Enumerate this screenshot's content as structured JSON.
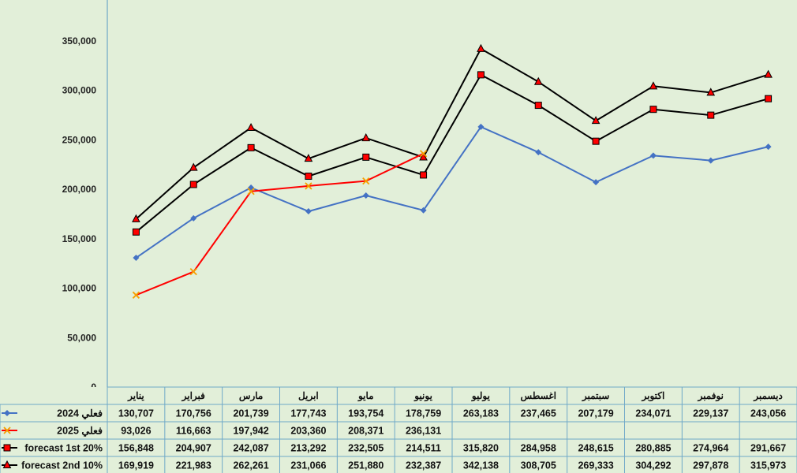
{
  "chart_data": {
    "type": "line",
    "categories": [
      "يناير",
      "فبراير",
      "مارس",
      "ابريل",
      "مايو",
      "يونيو",
      "يوليو",
      "اغسطس",
      "سبتمبر",
      "اكتوبر",
      "نوفمبر",
      "ديسمبر"
    ],
    "ylim": [
      0,
      350000
    ],
    "yticks": [
      0,
      50000,
      100000,
      150000,
      200000,
      250000,
      300000,
      350000
    ],
    "ytick_labels": [
      "0",
      "50,000",
      "100,000",
      "150,000",
      "200,000",
      "250,000",
      "300,000",
      "350,000"
    ],
    "grid": true,
    "legend_placement": "data-table-rows",
    "series": [
      {
        "name": "فعلي 2024",
        "color": "#4472c4",
        "marker": "diamond",
        "values": [
          130707,
          170756,
          201739,
          177743,
          193754,
          178759,
          263183,
          237465,
          207179,
          234071,
          229137,
          243056
        ],
        "labels": [
          "130,707",
          "170,756",
          "201,739",
          "177,743",
          "193,754",
          "178,759",
          "263,183",
          "237,465",
          "207,179",
          "234,071",
          "229,137",
          "243,056"
        ]
      },
      {
        "name": "فعلي 2025",
        "color": "#ff0000",
        "marker": "x",
        "values": [
          93026,
          116663,
          197942,
          203360,
          208371,
          236131,
          null,
          null,
          null,
          null,
          null,
          null
        ],
        "labels": [
          "93,026",
          "116,663",
          "197,942",
          "203,360",
          "208,371",
          "236,131",
          "",
          "",
          "",
          "",
          "",
          ""
        ]
      },
      {
        "name": "forecast 1st 20%",
        "color": "#000000",
        "marker": "square",
        "values": [
          156848,
          204907,
          242087,
          213292,
          232505,
          214511,
          315820,
          284958,
          248615,
          280885,
          274964,
          291667
        ],
        "labels": [
          "156,848",
          "204,907",
          "242,087",
          "213,292",
          "232,505",
          "214,511",
          "315,820",
          "284,958",
          "248,615",
          "280,885",
          "274,964",
          "291,667"
        ]
      },
      {
        "name": "forecast 2nd 10%",
        "color": "#000000",
        "marker": "triangle",
        "values": [
          169919,
          221983,
          262261,
          231066,
          251880,
          232387,
          342138,
          308705,
          269333,
          304292,
          297878,
          315973
        ],
        "labels": [
          "169,919",
          "221,983",
          "262,261",
          "231,066",
          "251,880",
          "232,387",
          "342,138",
          "308,705",
          "269,333",
          "304,292",
          "297,878",
          "315,973"
        ]
      }
    ]
  }
}
